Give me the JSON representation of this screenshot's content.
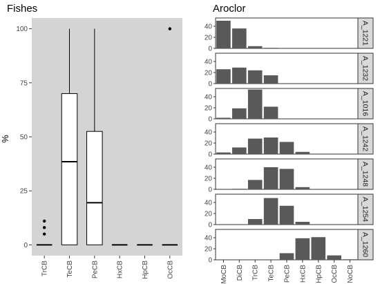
{
  "chart_data": [
    {
      "type": "box",
      "title": "Fishes",
      "ylabel": "%",
      "xlabel": "",
      "ylim": [
        -5,
        105
      ],
      "yticks": [
        0,
        25,
        50,
        75,
        100
      ],
      "ytick_labels": [
        "0",
        "25",
        "50",
        "75",
        "100"
      ],
      "grid": false,
      "categories": [
        "TrCB",
        "TeCB",
        "PeCB",
        "HxCB",
        "HpCB",
        "OcCB"
      ],
      "boxes": [
        {
          "q1": 0,
          "median": 0,
          "q3": 0,
          "whisker_low": 0,
          "whisker_high": 0,
          "outliers": [
            5,
            8,
            11
          ]
        },
        {
          "q1": 0,
          "median": 38.5,
          "q3": 70,
          "whisker_low": 0,
          "whisker_high": 100,
          "outliers": []
        },
        {
          "q1": 0,
          "median": 19.5,
          "q3": 52.5,
          "whisker_low": 0,
          "whisker_high": 100,
          "outliers": []
        },
        {
          "q1": 0,
          "median": 0,
          "q3": 0,
          "whisker_low": 0,
          "whisker_high": 0,
          "outliers": []
        },
        {
          "q1": 0,
          "median": 0,
          "q3": 0,
          "whisker_low": 0,
          "whisker_high": 0,
          "outliers": []
        },
        {
          "q1": 0,
          "median": 0,
          "q3": 0,
          "whisker_low": 0,
          "whisker_high": 0,
          "outliers": [
            100
          ]
        }
      ],
      "colors": {
        "panel": "#d4d4d4",
        "box": "#ffffff",
        "line": "#000000"
      }
    },
    {
      "type": "bar",
      "title": "Aroclor",
      "xlabel": "",
      "ylabel": "",
      "ylim": [
        0,
        55
      ],
      "yticks": [
        0,
        20,
        40
      ],
      "ytick_labels": [
        "0",
        "20",
        "40"
      ],
      "grid": false,
      "categories": [
        "MoCB",
        "DiCB",
        "TrCB",
        "TeCB",
        "PeCB",
        "HxCB",
        "HpCB",
        "OcCB",
        "NoCB"
      ],
      "series": [
        {
          "name": "A_1221",
          "values": [
            50,
            36,
            4,
            1,
            0,
            0,
            0,
            0,
            0
          ]
        },
        {
          "name": "A_1232",
          "values": [
            26,
            29,
            24,
            15,
            0,
            0,
            0,
            0,
            0
          ]
        },
        {
          "name": "A_1016",
          "values": [
            2,
            19,
            53,
            22,
            0,
            0,
            0,
            0,
            0
          ]
        },
        {
          "name": "A_1242",
          "values": [
            3,
            12,
            28,
            30,
            22,
            4,
            0,
            0,
            0
          ]
        },
        {
          "name": "A_1248",
          "values": [
            0,
            1,
            17,
            40,
            37,
            4,
            0,
            0,
            0
          ]
        },
        {
          "name": "A_1254",
          "values": [
            0,
            0,
            10,
            48,
            34,
            5,
            0,
            0,
            0
          ]
        },
        {
          "name": "A_1260",
          "values": [
            0,
            0,
            0,
            0,
            12,
            39,
            41,
            8,
            1
          ]
        }
      ],
      "colors": {
        "bar": "#595959",
        "panel": "#ffffff",
        "strip": "#d9d9d9"
      }
    }
  ]
}
